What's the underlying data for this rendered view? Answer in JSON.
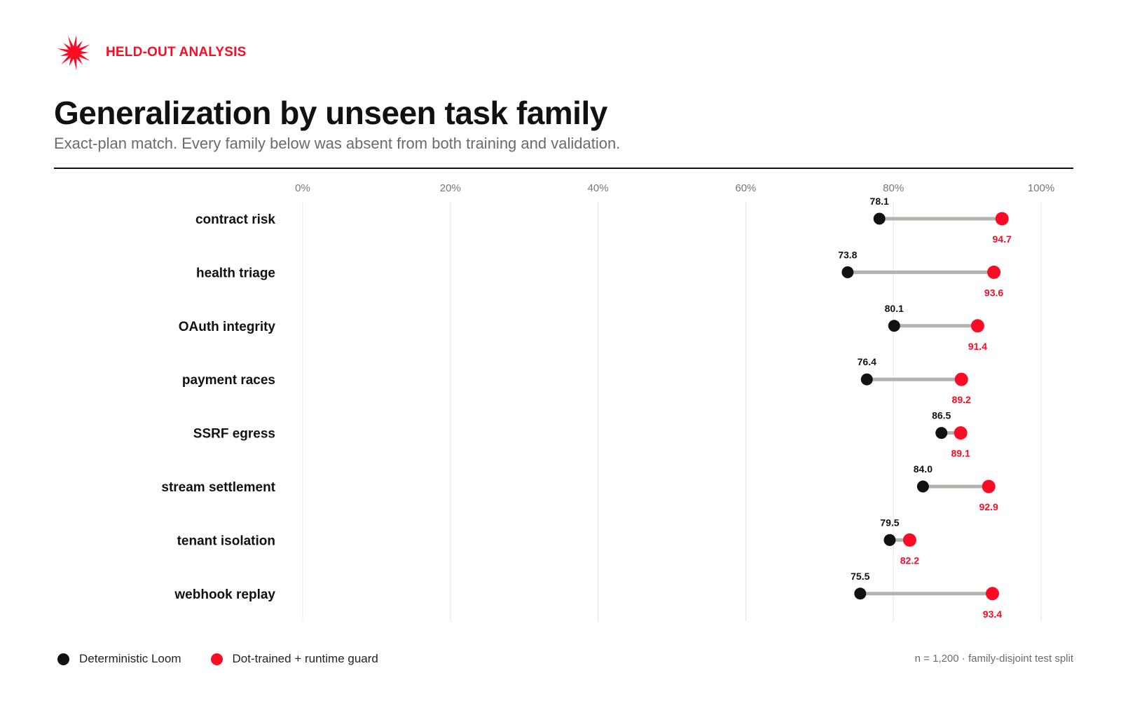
{
  "header": {
    "kicker": "HELD-OUT ANALYSIS",
    "logo_icon": "red-burst-icon",
    "title": "Generalization by unseen task family",
    "subtitle": "Exact-plan match. Every family below was absent from both training and validation."
  },
  "colors": {
    "accent": "#ff0a24",
    "baseline": "#111111",
    "connector": "#b3b3ae",
    "grid": "#e4e4e4",
    "axis_text": "#777777"
  },
  "legend": {
    "items": [
      {
        "label": "Deterministic Loom",
        "color": "#111111"
      },
      {
        "label": "Dot-trained + runtime guard",
        "color": "#ff0a24"
      }
    ]
  },
  "footnote": "n = 1,200 · family-disjoint test split",
  "chart_data": {
    "type": "dumbbell",
    "xlim": [
      0,
      100
    ],
    "xticks": [
      0,
      20,
      40,
      60,
      80,
      100
    ],
    "xtick_labels": [
      "0%",
      "20%",
      "40%",
      "60%",
      "80%",
      "100%"
    ],
    "categories": [
      "contract risk",
      "health triage",
      "OAuth integrity",
      "payment races",
      "SSRF egress",
      "stream settlement",
      "tenant isolation",
      "webhook replay"
    ],
    "series": [
      {
        "name": "Deterministic Loom",
        "values": [
          78.1,
          73.8,
          80.1,
          76.4,
          86.5,
          84.0,
          79.5,
          75.5
        ],
        "labels": [
          "78.1",
          "73.8",
          "80.1",
          "76.4",
          "86.5",
          "84.0",
          "79.5",
          "75.5"
        ]
      },
      {
        "name": "Dot-trained + runtime guard",
        "values": [
          94.7,
          93.6,
          91.4,
          89.2,
          89.1,
          92.9,
          82.2,
          93.4
        ],
        "labels": [
          "94.7",
          "93.6",
          "91.4",
          "89.2",
          "89.1",
          "92.9",
          "82.2",
          "93.4"
        ]
      }
    ],
    "grid": true
  }
}
